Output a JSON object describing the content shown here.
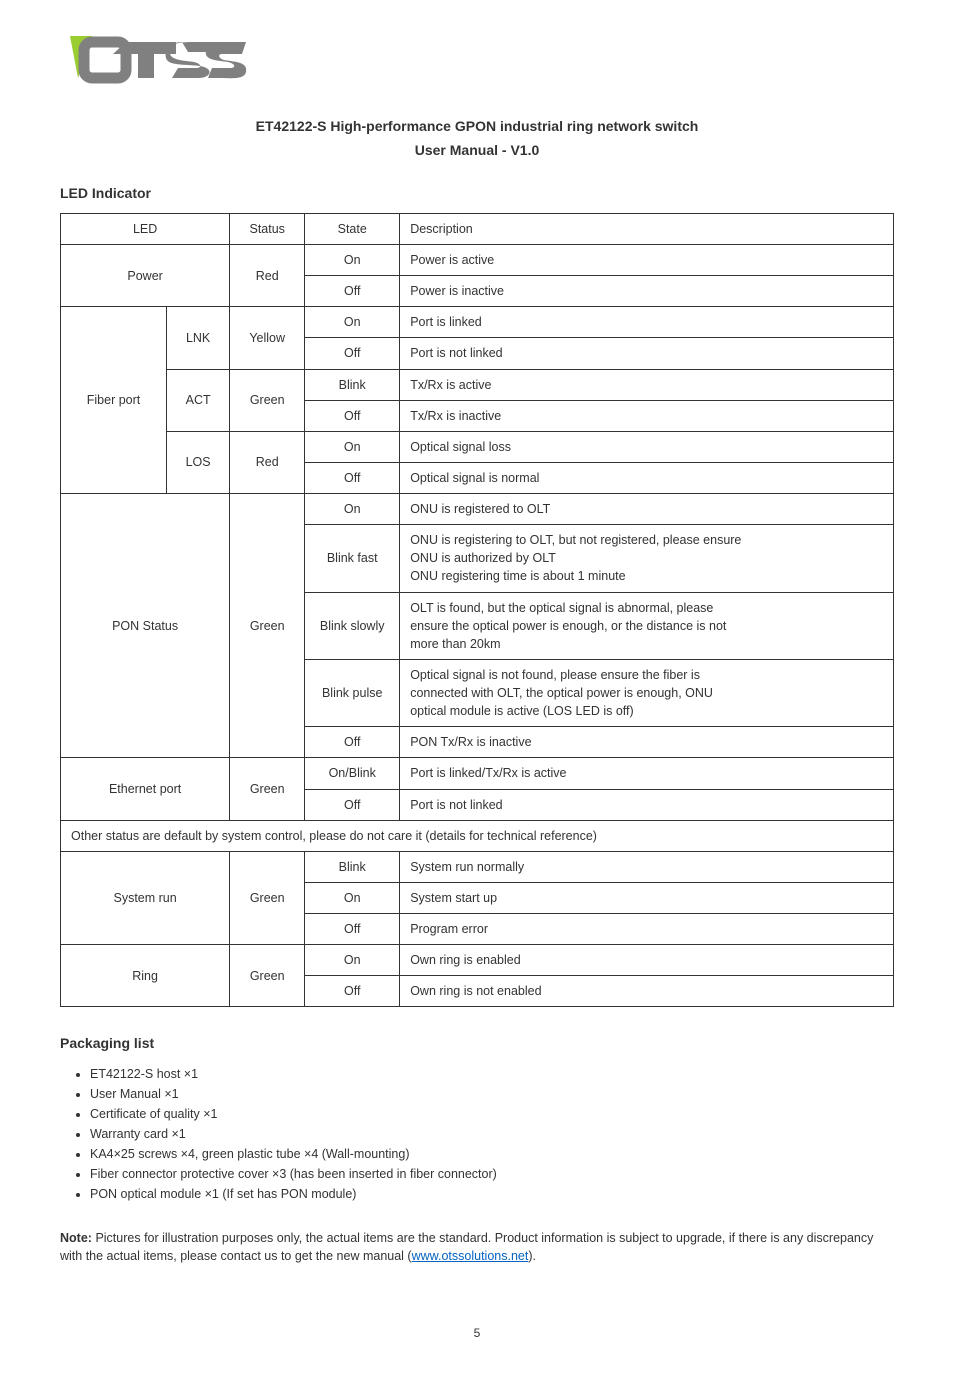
{
  "logo": {
    "accent_color": "#9acd32",
    "body_color": "#808080"
  },
  "product": {
    "title_line1": "ET42122-S High-performance GPON industrial ring network switch",
    "title_line2": "User Manual - V1.0"
  },
  "led_section_title": "LED Indicator",
  "table": {
    "headers": [
      "LED",
      "Status",
      "State",
      "Description"
    ],
    "rows": [
      {
        "c0": "Power",
        "c0rs": 2,
        "c1": "Red",
        "c1rs": 2,
        "c2": "On",
        "c3": "Power is active"
      },
      {
        "c2": "Off",
        "c3": "Power is inactive"
      },
      {
        "c0": "Fiber port",
        "c0rs": 6,
        "sub": "LNK",
        "subrs": 2,
        "c1": "Yellow",
        "c1rs": 2,
        "c2": "On",
        "c3": "Port is linked"
      },
      {
        "c2": "Off",
        "c3": "Port is not linked"
      },
      {
        "sub": "ACT",
        "subrs": 2,
        "c1": "Green",
        "c1rs": 2,
        "c2": "Blink",
        "c3": "Tx/Rx is active"
      },
      {
        "c2": "Off",
        "c3": "Tx/Rx is inactive"
      },
      {
        "sub": "LOS",
        "subrs": 2,
        "c1": "Red",
        "c1rs": 2,
        "c2": "On",
        "c3": "Optical signal loss"
      },
      {
        "c2": "Off",
        "c3": "Optical signal is normal"
      },
      {
        "c0": "PON Status",
        "c0rs": 5,
        "c1": "Green",
        "c1rs": 5,
        "c2": "On",
        "c3": "ONU is registered to OLT"
      },
      {
        "c2": "Blink fast",
        "c3": "ONU is registering to OLT, but not registered, please ensure<br>ONU is authorized by OLT<br>ONU registering time is about 1 minute"
      },
      {
        "c2": "Blink slowly",
        "c3": "OLT is found, but the optical signal is abnormal, please<br>ensure the optical power is enough, or the distance is not<br>more than 20km"
      },
      {
        "c2": "Blink pulse",
        "c3": "Optical signal is not found, please ensure the fiber is<br>connected with OLT, the optical power is enough, ONU<br>optical module is active (LOS LED is off)"
      },
      {
        "c2": "Off",
        "c3": "PON Tx/Rx is inactive"
      },
      {
        "c0": "Ethernet port",
        "c0rs": 2,
        "c1": "Green",
        "c1rs": 2,
        "c2": "On/Blink",
        "c3": "Port is linked/Tx/Rx is active"
      },
      {
        "c2": "Off",
        "c3": "Port is not linked"
      },
      {
        "c0": "Other status are default by system control, please do not care it (details for technical reference)",
        "full": true
      },
      {
        "c0": "System run",
        "c0rs": 3,
        "c1": "Green",
        "c1rs": 3,
        "c2": "Blink",
        "c3": "System run normally"
      },
      {
        "c2": "On",
        "c3": "System start up"
      },
      {
        "c2": "Off",
        "c3": "Program error"
      },
      {
        "c0": "Ring",
        "c0rs": 2,
        "c1": "Green",
        "c1rs": 2,
        "c2": "On",
        "c3": "Own ring is enabled"
      },
      {
        "c2": "Off",
        "c3": "Own ring is not enabled"
      }
    ]
  },
  "packaging": {
    "title": "Packaging list",
    "items": [
      "ET42122-S host ×1",
      "User Manual ×1",
      "Certificate of quality ×1",
      "Warranty card ×1",
      "KA4×25 screws ×4, green plastic tube ×4 (Wall-mounting)",
      "Fiber connector protective cover ×3 (has been inserted in fiber connector)",
      "PON optical module ×1 (If set has PON module)"
    ]
  },
  "note": {
    "label": "Note:",
    "text_before": "Pictures for illustration purposes only, the actual items are the standard. Product information is subject to upgrade, if there is any discrepancy with the actual items, please contact us to get the new manual (",
    "link_text": "www.otssolutions.net",
    "link_href": "http://www.otssolutions.net",
    "text_after": ")."
  },
  "page_number": "5"
}
